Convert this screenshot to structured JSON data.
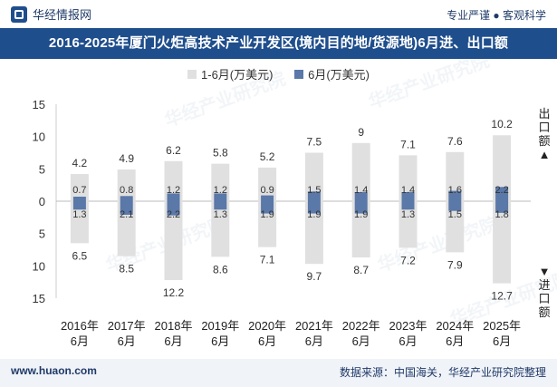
{
  "header": {
    "brand": "华经情报网",
    "tagline": "专业严谨 ● 客观科学"
  },
  "title": "2016-2025年厦门火炬高技术产业开发区(境内目的地/货源地)6月进、出口额",
  "legend": {
    "series1": "1-6月(万美元)",
    "series2": "6月(万美元)"
  },
  "side_labels": {
    "export": "出口额▲",
    "import": "▼进口额"
  },
  "footer": {
    "left": "www.huaon.com",
    "right": "数据来源：中国海关，华经产业研究院整理"
  },
  "watermark": "华经产业研究院",
  "colors": {
    "ytd_bar": "#e0e0e0",
    "month_bar": "#5a78a8",
    "header_bg": "#1f4e8c"
  },
  "chart_data": {
    "type": "bar",
    "categories": [
      "2016年6月",
      "2017年6月",
      "2018年6月",
      "2019年6月",
      "2020年6月",
      "2021年6月",
      "2022年6月",
      "2023年6月",
      "2024年6月",
      "2025年6月"
    ],
    "series": [
      {
        "name": "1-6月(万美元)",
        "export": [
          4.2,
          4.9,
          6.2,
          5.8,
          5.2,
          7.5,
          9,
          7.1,
          7.6,
          10.2
        ],
        "import": [
          6.5,
          8.5,
          12.2,
          8.6,
          7.1,
          9.7,
          8.7,
          7.2,
          7.9,
          12.7
        ]
      },
      {
        "name": "6月(万美元)",
        "export": [
          0.7,
          0.8,
          1.2,
          1.2,
          0.9,
          1.5,
          1.4,
          1.4,
          1.6,
          2.2
        ],
        "import": [
          1.3,
          2.1,
          2.2,
          1.3,
          1.9,
          1.9,
          1.9,
          1.3,
          1.5,
          1.8
        ]
      }
    ],
    "y_ticks": [
      "15",
      "10",
      "5",
      "0",
      "5",
      "10",
      "15"
    ],
    "ylim": [
      -15,
      15
    ],
    "grid": false,
    "legend_position": "top-center"
  }
}
